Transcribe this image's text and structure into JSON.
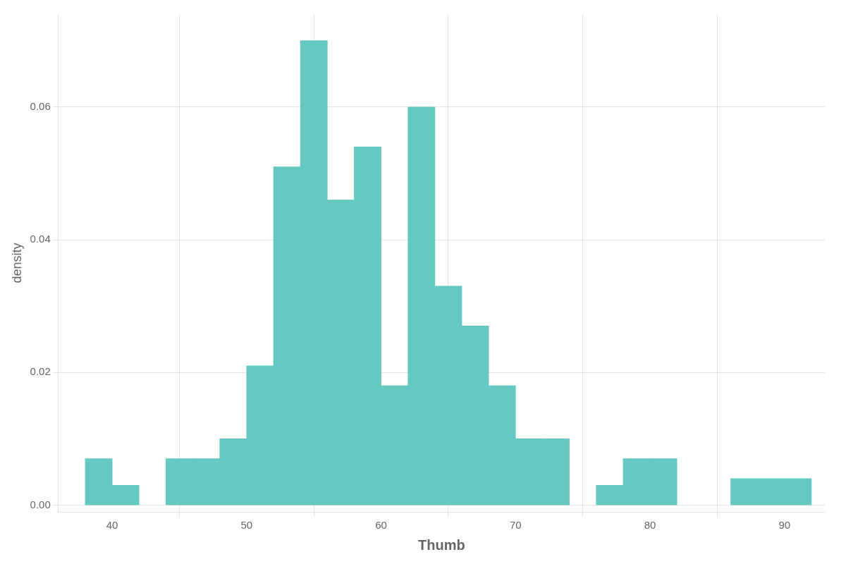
{
  "chart_data": {
    "type": "bar",
    "xlabel": "Thumb",
    "ylabel": "density",
    "x": [
      39,
      41,
      45,
      47,
      49,
      51,
      53,
      55,
      57,
      59,
      61,
      63,
      65,
      67,
      69,
      71,
      73,
      77,
      79,
      81,
      87,
      89,
      91
    ],
    "values": [
      0.007,
      0.003,
      0.007,
      0.007,
      0.01,
      0.021,
      0.051,
      0.07,
      0.046,
      0.054,
      0.018,
      0.06,
      0.033,
      0.027,
      0.018,
      0.01,
      0.01,
      0.003,
      0.007,
      0.007,
      0.004,
      0.004,
      0.004
    ],
    "color": "#66c9c1",
    "xlim": [
      36,
      93
    ],
    "ylim": [
      -0.001,
      0.074
    ],
    "xticks": [
      40,
      50,
      60,
      70,
      80,
      90
    ],
    "yticks": [
      {
        "value": 0,
        "label": "0.00"
      },
      0.02,
      0.04,
      0.06
    ],
    "grid": true
  }
}
